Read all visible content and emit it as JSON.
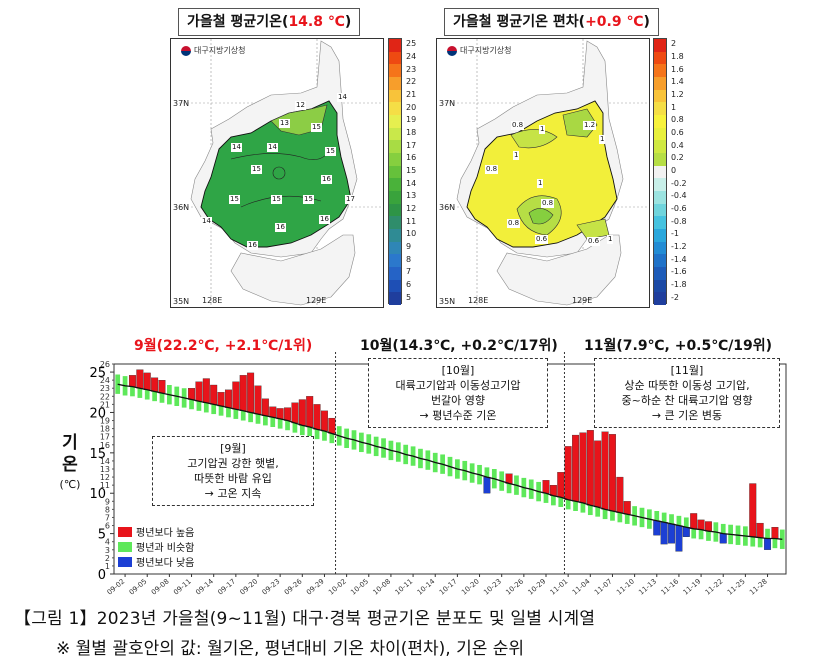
{
  "maps": [
    {
      "title_prefix": "가을철 평균기온(",
      "title_value": "14.8 ℃",
      "title_suffix": ")",
      "agency": "대구지방기상청",
      "colorbar_labels": [
        "25",
        "24",
        "23",
        "22",
        "21",
        "20",
        "19",
        "18",
        "17",
        "16",
        "15",
        "14",
        "13",
        "12",
        "11",
        "10",
        "9",
        "8",
        "7",
        "6",
        "5"
      ],
      "colorbar_colors": [
        "#e02516",
        "#ee4a12",
        "#f5741a",
        "#f79e2b",
        "#f8c33a",
        "#f5de46",
        "#e6ef4f",
        "#c9e84a",
        "#a8dc44",
        "#86cf3f",
        "#66c13b",
        "#4ab23a",
        "#39a33c",
        "#2e9446",
        "#2f8d6b",
        "#2f8b94",
        "#2f86b6",
        "#2b78cc",
        "#2563c6",
        "#1e4fb5",
        "#1f3e9d"
      ],
      "contour_labels": [
        "12",
        "13",
        "14",
        "15",
        "14",
        "14",
        "15",
        "15",
        "15",
        "15",
        "15",
        "16",
        "14",
        "16",
        "16",
        "17",
        "16"
      ],
      "lat_labels": [
        "37N",
        "36N",
        "35N"
      ],
      "lon_labels": [
        "128E",
        "129E"
      ]
    },
    {
      "title_prefix": "가을철 평균기온 편차(",
      "title_value": "+0.9 ℃",
      "title_suffix": ")",
      "agency": "대구지방기상청",
      "colorbar_labels": [
        "2",
        "1.8",
        "1.6",
        "1.4",
        "1.2",
        "1",
        "0.8",
        "0.6",
        "0.4",
        "0.2",
        "0",
        "-0.2",
        "-0.4",
        "-0.6",
        "-0.8",
        "-1",
        "-1.2",
        "-1.4",
        "-1.6",
        "-1.8",
        "-2"
      ],
      "colorbar_colors": [
        "#e02516",
        "#ee4a12",
        "#f5741a",
        "#f79e2b",
        "#f8c33a",
        "#f5de46",
        "#f7f23c",
        "#e8f03c",
        "#cfe842",
        "#b6de45",
        "#f2f2f2",
        "#c8efe9",
        "#9be3e0",
        "#6fd4dc",
        "#45c2df",
        "#2aa7dc",
        "#228cd4",
        "#1f72c8",
        "#1d5bb8",
        "#1c49a5",
        "#1f3e9d"
      ],
      "contour_labels": [
        "0.8",
        "1",
        "1.2",
        "1",
        "1",
        "0.8",
        "1",
        "0.8",
        "0.6",
        "0.8",
        "0.6",
        "1"
      ],
      "lat_labels": [
        "37N",
        "36N",
        "35N"
      ],
      "lon_labels": [
        "128E",
        "129E"
      ]
    }
  ],
  "months": [
    {
      "label": "9월(22.2℃, +2.1℃/1위)"
    },
    {
      "label": "10월(14.3℃, +0.2℃/17위)"
    },
    {
      "label": "11월(7.9℃, +0.5℃/19위)"
    }
  ],
  "notes": [
    {
      "lines": [
        "[9월]",
        "고기압권 강한 햇볕,",
        "따뜻한 바람 유입",
        "→ 고온 지속"
      ]
    },
    {
      "lines": [
        "[10월]",
        "대륙고기압과 이동성고기압",
        "번갈아 영향",
        "→ 평년수준 기온"
      ]
    },
    {
      "lines": [
        "[11월]",
        "상순 따뜻한 이동성 고기압,",
        "중~하순 찬 대륙고기압 영향",
        "→ 큰 기온 변동"
      ]
    }
  ],
  "y_axis": {
    "label_big": "기\n온",
    "label_unit": "(℃)"
  },
  "legend": [
    {
      "label": "평년보다 높음",
      "color": "#e8141b"
    },
    {
      "label": "평년과 비슷함",
      "color": "#5ee85a"
    },
    {
      "label": "평년보다 낮음",
      "color": "#1c3fd4"
    }
  ],
  "caption": {
    "line1": "【그림 1】2023년 가을철(9~11월) 대구·경북 평균기온 분포도 및 일별 시계열",
    "line2": "※ 월별 괄호안의 값: 월기온, 평년대비 기온 차이(편차), 기온 순위"
  },
  "chart_data": {
    "type": "bar",
    "title": "",
    "xlabel": "",
    "ylabel": "기온 (℃)",
    "ylim": [
      0,
      26
    ],
    "yticks": [
      0,
      5,
      10,
      15,
      20,
      25
    ],
    "x_tick_labels": [
      "09-02",
      "09-05",
      "09-08",
      "09-11",
      "09-14",
      "09-17",
      "09-20",
      "09-23",
      "09-26",
      "09-29",
      "10-02",
      "10-05",
      "10-08",
      "10-11",
      "10-14",
      "10-17",
      "10-20",
      "10-23",
      "10-26",
      "10-29",
      "11-01",
      "11-04",
      "11-07",
      "11-10",
      "11-13",
      "11-16",
      "11-19",
      "11-22",
      "11-25",
      "11-28"
    ],
    "start_label": "09-01",
    "days": 91,
    "colors": {
      "high": "#e8141b",
      "normal": "#5ee85a",
      "low": "#1c3fd4",
      "line": "#111111"
    },
    "series": [
      {
        "name": "평년보다 높음",
        "values": []
      },
      {
        "name": "평년과 비슷함",
        "values": []
      },
      {
        "name": "평년보다 낮음",
        "values": []
      }
    ],
    "daily_temp": [
      23.6,
      23.8,
      24.6,
      25.3,
      24.9,
      24.3,
      24.0,
      22.4,
      22.0,
      21.7,
      23.0,
      23.8,
      24.2,
      23.4,
      22.5,
      22.8,
      23.8,
      24.6,
      24.9,
      23.3,
      21.7,
      20.7,
      20.5,
      20.6,
      21.2,
      21.6,
      22.0,
      21.0,
      20.2,
      19.3,
      17.8,
      16.5,
      16.0,
      16.3,
      15.2,
      15.4,
      16.5,
      16.1,
      15.0,
      14.6,
      14.9,
      14.5,
      13.5,
      13.1,
      12.9,
      12.6,
      12.7,
      12.4,
      11.7,
      11.6,
      10.0,
      11.7,
      12.2,
      12.4,
      12.0,
      11.5,
      11.4,
      11.2,
      11.6,
      11.0,
      12.6,
      15.8,
      17.2,
      17.5,
      17.8,
      16.5,
      17.6,
      17.3,
      12.0,
      9.0,
      8.3,
      6.2,
      5.8,
      4.8,
      3.7,
      3.8,
      2.8,
      4.6,
      7.5,
      6.7,
      6.5,
      4.8,
      3.8,
      4.5,
      4.1,
      5.4,
      11.2,
      6.3,
      3.0,
      5.8,
      4.9
    ],
    "normal_temp": [
      23.5,
      23.3,
      23.2,
      23.0,
      22.8,
      22.6,
      22.4,
      22.2,
      22.0,
      21.8,
      21.6,
      21.4,
      21.2,
      21.0,
      20.8,
      20.6,
      20.4,
      20.2,
      20.0,
      19.8,
      19.6,
      19.4,
      19.2,
      19.0,
      18.7,
      18.4,
      18.2,
      17.9,
      17.7,
      17.4,
      17.1,
      16.8,
      16.6,
      16.3,
      16.1,
      15.8,
      15.6,
      15.3,
      15.1,
      14.8,
      14.6,
      14.3,
      14.1,
      13.8,
      13.6,
      13.3,
      13.0,
      12.8,
      12.5,
      12.3,
      12.0,
      11.8,
      11.5,
      11.2,
      11.0,
      10.7,
      10.5,
      10.2,
      10.0,
      9.7,
      9.5,
      9.2,
      9.0,
      8.8,
      8.5,
      8.3,
      8.0,
      7.8,
      7.6,
      7.4,
      7.2,
      7.0,
      6.8,
      6.6,
      6.4,
      6.2,
      6.0,
      5.8,
      5.6,
      5.5,
      5.3,
      5.2,
      5.0,
      4.9,
      4.8,
      4.7,
      4.6,
      4.5,
      4.4,
      4.4,
      4.3
    ]
  }
}
